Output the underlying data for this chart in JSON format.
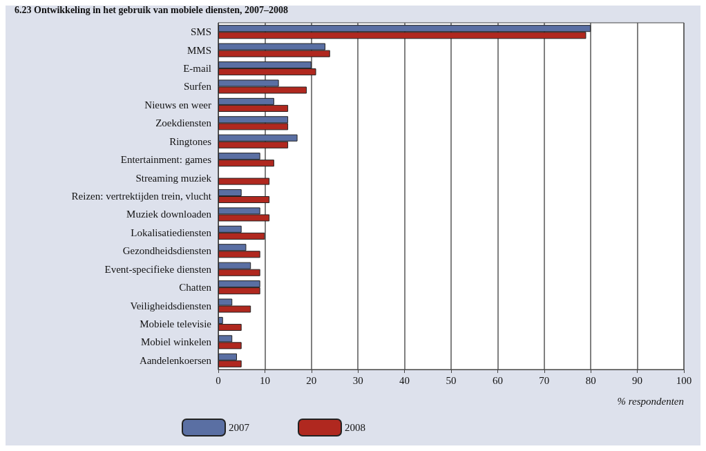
{
  "chart_data": {
    "type": "bar",
    "orientation": "horizontal",
    "title": "6.23 Ontwikkeling in het gebruik van mobiele diensten, 2007–2008",
    "xlabel": "% respondenten",
    "categories": [
      "SMS",
      "MMS",
      "E-mail",
      "Surfen",
      "Nieuws en weer",
      "Zoekdiensten",
      "Ringtones",
      "Entertainment: games",
      "Streaming muziek",
      "Reizen: vertrektijden trein, vlucht",
      "Muziek downloaden",
      "Lokalisatiediensten",
      "Gezondheidsdiensten",
      "Event-specifieke diensten",
      "Chatten",
      "Veiligheidsdiensten",
      "Mobiele televisie",
      "Mobiel winkelen",
      "Aandelenkoersen"
    ],
    "series": [
      {
        "name": "2007",
        "color": "#5a6fa3",
        "values": [
          80,
          23,
          20,
          13,
          12,
          15,
          17,
          9,
          null,
          5,
          9,
          5,
          6,
          7,
          9,
          3,
          1,
          3,
          4
        ]
      },
      {
        "name": "2008",
        "color": "#b0281f",
        "values": [
          79,
          24,
          21,
          19,
          15,
          15,
          15,
          12,
          11,
          11,
          11,
          10,
          9,
          9,
          9,
          7,
          5,
          5,
          5
        ]
      }
    ],
    "xlim": [
      0,
      100
    ],
    "xticks": [
      0,
      10,
      20,
      30,
      40,
      50,
      60,
      70,
      80,
      90,
      100
    ],
    "grid": "x",
    "legend": "bottom left"
  }
}
